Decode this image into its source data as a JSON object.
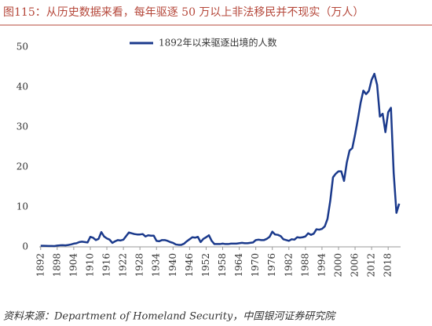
{
  "chart_data": {
    "type": "line",
    "title": "图115：从历史数据来看，每年驱逐 50 万以上非法移民并不现实（万人）",
    "source": "资料来源：Department of Homeland Security，中国银河证券研究院",
    "x": [
      1892,
      1893,
      1894,
      1895,
      1896,
      1897,
      1898,
      1899,
      1900,
      1901,
      1902,
      1903,
      1904,
      1905,
      1906,
      1907,
      1908,
      1909,
      1910,
      1911,
      1912,
      1913,
      1914,
      1915,
      1916,
      1917,
      1918,
      1919,
      1920,
      1921,
      1922,
      1923,
      1924,
      1925,
      1926,
      1927,
      1928,
      1929,
      1930,
      1931,
      1932,
      1933,
      1934,
      1935,
      1936,
      1937,
      1938,
      1939,
      1940,
      1941,
      1942,
      1943,
      1944,
      1945,
      1946,
      1947,
      1948,
      1949,
      1950,
      1951,
      1952,
      1953,
      1954,
      1955,
      1956,
      1957,
      1958,
      1959,
      1960,
      1961,
      1962,
      1963,
      1964,
      1965,
      1966,
      1967,
      1968,
      1969,
      1970,
      1971,
      1972,
      1973,
      1974,
      1975,
      1976,
      1977,
      1978,
      1979,
      1980,
      1981,
      1982,
      1983,
      1984,
      1985,
      1986,
      1987,
      1988,
      1989,
      1990,
      1991,
      1992,
      1993,
      1994,
      1995,
      1996,
      1997,
      1998,
      1999,
      2000,
      2001,
      2002,
      2003,
      2004,
      2005,
      2006,
      2007,
      2008,
      2009,
      2010,
      2011,
      2012,
      2013,
      2014,
      2015,
      2016,
      2017,
      2018,
      2019,
      2020,
      2021,
      2022
    ],
    "series": [
      {
        "name": "1892年以来驱逐出境的人数",
        "color": "#1b3a8c",
        "values": [
          0.28,
          0.26,
          0.24,
          0.21,
          0.22,
          0.2,
          0.31,
          0.38,
          0.42,
          0.36,
          0.46,
          0.6,
          0.8,
          0.9,
          1.2,
          1.3,
          1.2,
          1.1,
          2.5,
          2.3,
          1.7,
          2.0,
          3.7,
          2.6,
          2.1,
          1.8,
          1.0,
          1.4,
          1.7,
          1.6,
          1.8,
          2.7,
          3.6,
          3.4,
          3.2,
          3.1,
          3.1,
          3.2,
          2.6,
          2.9,
          2.8,
          2.8,
          1.5,
          1.4,
          1.7,
          1.7,
          1.5,
          1.2,
          1.0,
          0.6,
          0.5,
          0.5,
          0.8,
          1.4,
          1.9,
          2.4,
          2.3,
          2.5,
          1.2,
          2.0,
          2.4,
          2.9,
          1.5,
          0.7,
          0.7,
          0.7,
          0.8,
          0.7,
          0.7,
          0.8,
          0.8,
          0.8,
          0.9,
          1.0,
          0.9,
          0.9,
          1.0,
          1.1,
          1.7,
          1.8,
          1.7,
          1.7,
          2.0,
          2.5,
          3.8,
          3.1,
          3.0,
          2.7,
          1.9,
          1.7,
          1.5,
          1.9,
          1.8,
          2.4,
          2.3,
          2.4,
          2.6,
          3.4,
          3.0,
          3.3,
          4.4,
          4.3,
          4.5,
          5.1,
          7.0,
          11.5,
          17.4,
          18.3,
          18.9,
          18.9,
          16.5,
          21.1,
          24.1,
          24.7,
          28.1,
          31.9,
          36.0,
          39.1,
          38.2,
          39.0,
          41.8,
          43.3,
          40.5,
          32.6,
          33.3,
          28.7,
          33.7,
          34.8,
          18.5,
          8.5,
          10.8
        ]
      }
    ],
    "xlim": [
      1891.5,
      2022.5
    ],
    "xticks": [
      1892,
      1898,
      1904,
      1910,
      1916,
      1922,
      1928,
      1934,
      1940,
      1946,
      1952,
      1958,
      1964,
      1970,
      1976,
      1982,
      1988,
      1994,
      2000,
      2006,
      2012,
      2018
    ],
    "ylim": [
      0,
      50
    ],
    "yticks": [
      0,
      10,
      20,
      30,
      40,
      50
    ],
    "legend": "top"
  }
}
